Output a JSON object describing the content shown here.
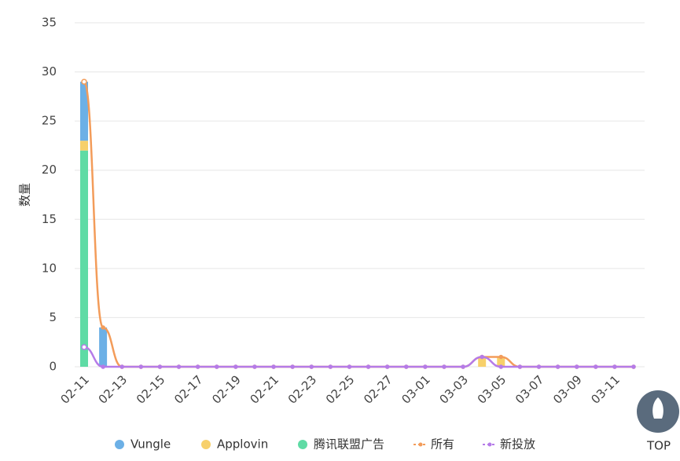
{
  "chart_data": {
    "type": "bar",
    "y_label": "数量",
    "categories": [
      "02-11",
      null,
      "02-13",
      null,
      "02-15",
      null,
      "02-17",
      null,
      "02-19",
      null,
      "02-21",
      null,
      "02-23",
      null,
      "02-25",
      null,
      "02-27",
      null,
      "03-01",
      null,
      "03-03",
      null,
      "03-05",
      null,
      "03-07",
      null,
      "03-09",
      null,
      "03-11",
      null
    ],
    "series": [
      {
        "name": "Vungle",
        "type": "bar",
        "color": "#6cb0e6",
        "values": [
          6,
          4,
          0,
          0,
          0,
          0,
          0,
          0,
          0,
          0,
          0,
          0,
          0,
          0,
          0,
          0,
          0,
          0,
          0,
          0,
          0,
          0,
          0,
          0,
          0,
          0,
          0,
          0,
          0,
          0
        ]
      },
      {
        "name": "Applovin",
        "type": "bar",
        "color": "#f7d06b",
        "values": [
          1,
          0,
          0,
          0,
          0,
          0,
          0,
          0,
          0,
          0,
          0,
          0,
          0,
          0,
          0,
          0,
          0,
          0,
          0,
          0,
          0,
          1,
          1,
          0,
          0,
          0,
          0,
          0,
          0,
          0
        ]
      },
      {
        "name": "腾讯联盟广告",
        "type": "bar",
        "color": "#5fdba5",
        "values": [
          22,
          0,
          0,
          0,
          0,
          0,
          0,
          0,
          0,
          0,
          0,
          0,
          0,
          0,
          0,
          0,
          0,
          0,
          0,
          0,
          0,
          0,
          0,
          0,
          0,
          0,
          0,
          0,
          0,
          0
        ]
      },
      {
        "name": "所有",
        "type": "line",
        "color": "#f39c5a",
        "values": [
          29,
          4,
          0,
          0,
          0,
          0,
          0,
          0,
          0,
          0,
          0,
          0,
          0,
          0,
          0,
          0,
          0,
          0,
          0,
          0,
          0,
          1,
          1,
          0,
          0,
          0,
          0,
          0,
          0,
          0
        ]
      },
      {
        "name": "新投放",
        "type": "line",
        "color": "#b57be8",
        "values": [
          2,
          0,
          0,
          0,
          0,
          0,
          0,
          0,
          0,
          0,
          0,
          0,
          0,
          0,
          0,
          0,
          0,
          0,
          0,
          0,
          0,
          1,
          0,
          0,
          0,
          0,
          0,
          0,
          0,
          0
        ]
      }
    ],
    "ylim": [
      0,
      35
    ],
    "yticks": [
      0,
      5,
      10,
      15,
      20,
      25,
      30,
      35
    ],
    "grid": true
  },
  "top_button": "TOP"
}
